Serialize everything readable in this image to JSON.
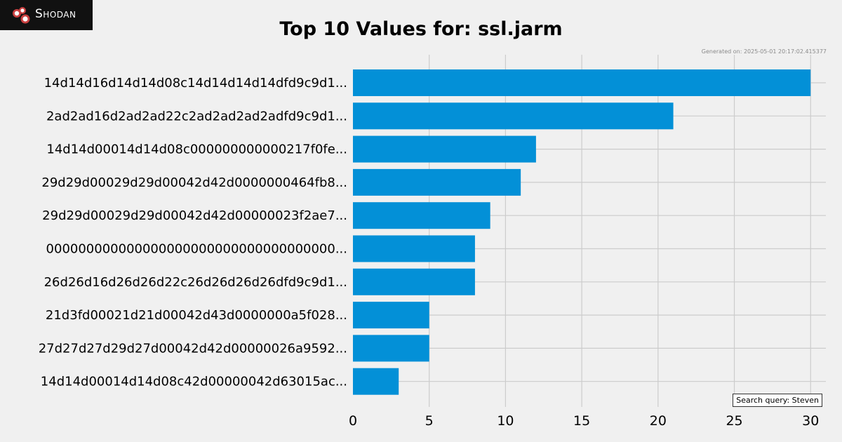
{
  "brand": {
    "logo_text": "Shodan",
    "logo_icon": "shodan-logo-icon"
  },
  "footer": {
    "generated": "Generated on: 2025-05-01 20:17:02.415377",
    "search_query": "Search query: Steven"
  },
  "colors": {
    "bar": "#0390d7",
    "background": "#f0f0f0",
    "grid": "#cccccc"
  },
  "chart_data": {
    "type": "bar",
    "orientation": "horizontal",
    "title": "Top 10 Values for: ssl.jarm",
    "xlabel": "",
    "ylabel": "",
    "grid": true,
    "xlim": [
      0,
      31
    ],
    "xticks": [
      0,
      5,
      10,
      15,
      20,
      25,
      30
    ],
    "categories": [
      "14d14d16d14d14d08c14d14d14d14dfd9c9d1...",
      "2ad2ad16d2ad2ad22c2ad2ad2ad2adfd9c9d1...",
      "14d14d00014d14d08c000000000000217f0fe...",
      "29d29d00029d29d00042d42d0000000464fb8...",
      "29d29d00029d29d00042d42d00000023f2ae7...",
      "000000000000000000000000000000000000...",
      "26d26d16d26d26d22c26d26d26d26dfd9c9d1...",
      "21d3fd00021d21d00042d43d0000000a5f028...",
      "27d27d27d29d27d00042d42d00000026a9592...",
      "14d14d00014d14d08c42d00000042d63015ac..."
    ],
    "values": [
      30,
      21,
      12,
      11,
      9,
      8,
      8,
      5,
      5,
      3
    ]
  }
}
